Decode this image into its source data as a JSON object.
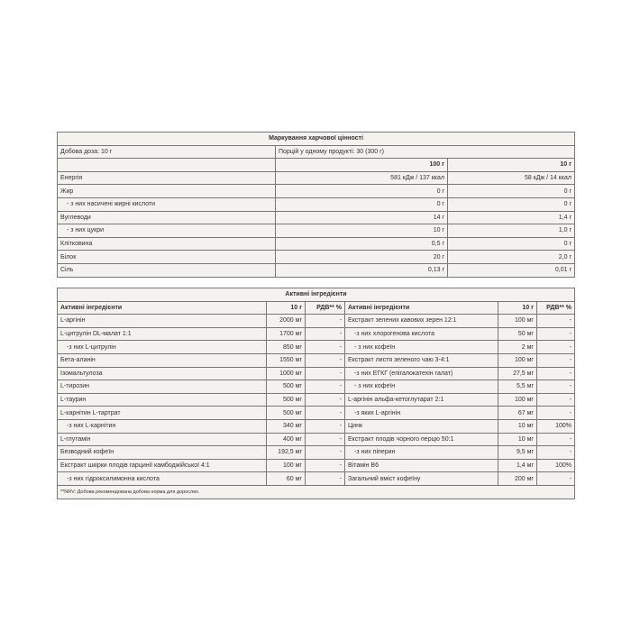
{
  "nutrition": {
    "title": "Маркування харчової цінності",
    "dose": "Добова доза: 10 г",
    "portions": "Порцій у одному продукті: 30 (300 г)",
    "col_100": "100 г",
    "col_10": "10 г",
    "rows": [
      {
        "name": "Енергія",
        "v100": "581 кДж / 137 ккал",
        "v10": "58 кДж / 14 ккал"
      },
      {
        "name": "Жир",
        "v100": "0 г",
        "v10": "0 г"
      },
      {
        "name": "- з них насичені жирні кислоти",
        "v100": "0 г",
        "v10": "0 г",
        "sub": true
      },
      {
        "name": "Вуглеводи",
        "v100": "14 г",
        "v10": "1,4 г"
      },
      {
        "name": "- з них цукри",
        "v100": "10 г",
        "v10": "1,0 г",
        "sub": true
      },
      {
        "name": "Клітковина",
        "v100": "0,5 г",
        "v10": "0 г"
      },
      {
        "name": "Білок",
        "v100": "20 г",
        "v10": "2,0 г"
      },
      {
        "name": "Сіль",
        "v100": "0,13 г",
        "v10": "0,01 г"
      }
    ]
  },
  "active": {
    "title": "Активні інгредієнти",
    "head": {
      "name": "Активні інгредієнти",
      "dose": "10 г",
      "rdv": "РДВ** %"
    },
    "rows": [
      [
        {
          "n": "L-аргінін",
          "d": "2000 мг",
          "r": "-"
        },
        {
          "n": "Екстракт зелених кавових зерен 12:1",
          "d": "100 мг",
          "r": "-"
        }
      ],
      [
        {
          "n": "L-цитрулін DL-малат 1:1",
          "d": "1700 мг",
          "r": "-"
        },
        {
          "n": "-з них хлорогенова кислота",
          "d": "50 мг",
          "r": "-",
          "s": 1
        }
      ],
      [
        {
          "n": "-з них L-цитрулін",
          "d": "850 мг",
          "r": "-",
          "s": 1
        },
        {
          "n": "- з них кофеїн",
          "d": "2 мг",
          "r": "-",
          "s": 1
        }
      ],
      [
        {
          "n": "Бета-аланін",
          "d": "1550 мг",
          "r": "-"
        },
        {
          "n": "Екстракт листя зеленого чаю 3-4:1",
          "d": "100 мг",
          "r": "-"
        }
      ],
      [
        {
          "n": "Ізомальтулоза",
          "d": "1000 мг",
          "r": "-"
        },
        {
          "n": "-з них ЕГКГ (епігалокатехін галат)",
          "d": "27,5 мг",
          "r": "-",
          "s": 1
        }
      ],
      [
        {
          "n": "L-тирозин",
          "d": "500 мг",
          "r": "-"
        },
        {
          "n": "- з них кофеїн",
          "d": "5,5 мг",
          "r": "-",
          "s": 1
        }
      ],
      [
        {
          "n": "L-таурин",
          "d": "500 мг",
          "r": "-"
        },
        {
          "n": "L-аргінін альфа-кетоглутарат 2:1",
          "d": "100 мг",
          "r": "-"
        }
      ],
      [
        {
          "n": "L-карнітин L-тартрат",
          "d": "500 мг",
          "r": "-"
        },
        {
          "n": "-з яких L-аргінін",
          "d": "67 мг",
          "r": "-",
          "s": 1
        }
      ],
      [
        {
          "n": "-з них L-карнітин",
          "d": "340 мг",
          "r": "-",
          "s": 1
        },
        {
          "n": "Цинк",
          "d": "10 мг",
          "r": "100%"
        }
      ],
      [
        {
          "n": "L-глутамін",
          "d": "400 мг",
          "r": "-"
        },
        {
          "n": "Екстракт плодів чорного перцю 50:1",
          "d": "10 мг",
          "r": "-"
        }
      ],
      [
        {
          "n": "Безводний кофеїн",
          "d": "192,5 мг",
          "r": "-"
        },
        {
          "n": "-з них піперин",
          "d": "9,5 мг",
          "r": "-",
          "s": 1
        }
      ],
      [
        {
          "n": "Екстракт шкірки плодів гарцинії камбоджійської 4:1",
          "d": "100 мг",
          "r": "-"
        },
        {
          "n": "Вітамін B6",
          "d": "1,4 мг",
          "r": "100%"
        }
      ],
      [
        {
          "n": "-з них гідроксилимонна кислота",
          "d": "60 мг",
          "r": "-",
          "s": 1
        },
        {
          "n": "Загальний вміст кофеїну",
          "d": "200 мг",
          "r": "-"
        }
      ]
    ],
    "footnote": "**NRV: Добова рекомендована добова норма для дорослих."
  }
}
